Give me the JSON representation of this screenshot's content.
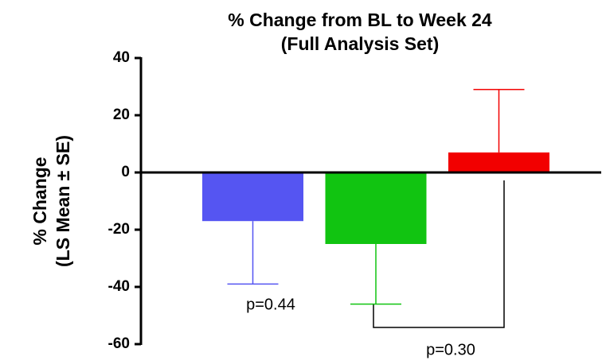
{
  "chart_data": {
    "type": "bar",
    "title": [
      "% Change from BL to Week 24",
      "(Full Analysis Set)"
    ],
    "y_label": [
      "% Change",
      "(LS Mean ± SE)"
    ],
    "categories": [
      null,
      null,
      null
    ],
    "values": [
      -17,
      -25,
      7
    ],
    "errors": [
      22,
      21,
      22
    ],
    "colors": [
      "#5555f2",
      "#11c411",
      "#f20000"
    ],
    "ylim": [
      -60,
      40
    ],
    "yticks": [
      -60,
      -40,
      -20,
      0,
      20,
      40
    ],
    "annotations": [
      "p=0.44",
      "p=0.30"
    ]
  }
}
